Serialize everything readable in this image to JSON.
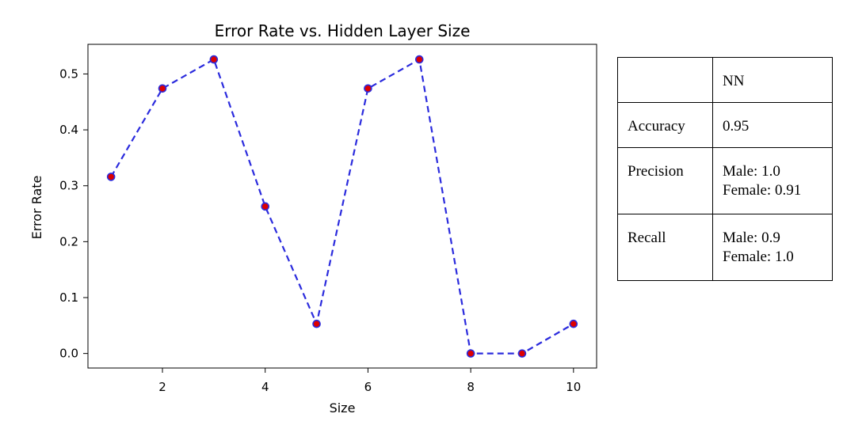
{
  "chart_data": {
    "type": "line",
    "title": "Error Rate vs. Hidden Layer Size",
    "xlabel": "Size",
    "ylabel": "Error Rate",
    "x": [
      1,
      2,
      3,
      4,
      5,
      6,
      7,
      8,
      9,
      10
    ],
    "series": [
      {
        "values": [
          0.316,
          0.474,
          0.526,
          0.263,
          0.053,
          0.474,
          0.526,
          0.0,
          0.0,
          0.053
        ]
      }
    ],
    "xlim": [
      0.55,
      10.45
    ],
    "ylim": [
      -0.026,
      0.553
    ],
    "xticks": [
      "2",
      "4",
      "6",
      "8",
      "10"
    ],
    "yticks": [
      "0.0",
      "0.1",
      "0.2",
      "0.3",
      "0.4",
      "0.5"
    ],
    "line_color": "#2b2bdd",
    "marker_color": "#dd0000",
    "line_style": "dashed",
    "grid": false
  },
  "table": {
    "header": [
      "",
      "NN"
    ],
    "rows": [
      {
        "label": "Accuracy",
        "lines": [
          "0.95"
        ]
      },
      {
        "label": "Precision",
        "lines": [
          "Male: 1.0",
          "Female: 0.91"
        ]
      },
      {
        "label": "Recall",
        "lines": [
          "Male: 0.9",
          "Female: 1.0"
        ]
      }
    ]
  }
}
